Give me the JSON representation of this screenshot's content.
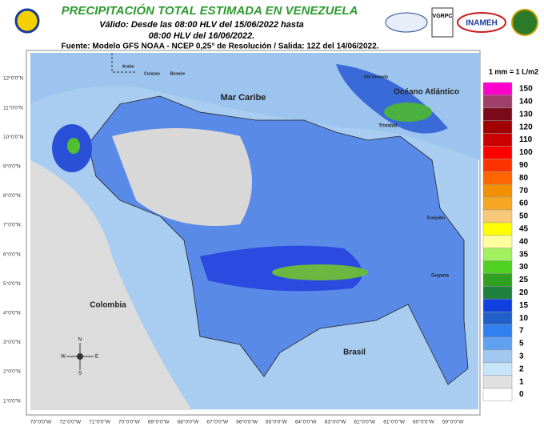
{
  "header": {
    "title": "PRECIPITACIÓN TOTAL ESTIMADA EN VENEZUELA",
    "subtitle_1": "Válido: Desde las 08:00 HLV del 15/06/2022 hasta",
    "subtitle_2": "08:00 HLV del 16/06/2022.",
    "source": "Fuente: Modelo GFS NOAA - NCEP 0,25° de Resolución / Salida: 12Z del 14/06/2022.",
    "logos": [
      "VGRPC",
      "INAMEH"
    ]
  },
  "map": {
    "labels": [
      "Mar Caribe",
      "Océano Atlántico",
      "Colombia",
      "Brasil",
      "Guyana",
      "Trinidad",
      "Aruba",
      "Curazao",
      "Bonaire",
      "Isla Granada",
      "Esequibo"
    ],
    "lat_labels": [
      "12°0'0\"N",
      "11°0'0\"N",
      "10°0'0\"N",
      "9°0'0\"N",
      "8°0'0\"N",
      "7°0'0\"N",
      "6°0'0\"N",
      "5°0'0\"N",
      "4°0'0\"N",
      "3°0'0\"N",
      "2°0'0\"N",
      "1°0'0\"N"
    ],
    "lon_labels": [
      "73°0'0\"W",
      "72°0'0\"W",
      "71°0'0\"W",
      "70°0'0\"W",
      "69°0'0\"W",
      "68°0'0\"W",
      "67°0'0\"W",
      "66°0'0\"W",
      "65°0'0\"W",
      "64°0'0\"W",
      "63°0'0\"W",
      "62°0'0\"W",
      "61°0'0\"W",
      "60°0'0\"W",
      "59°0'0\"W"
    ],
    "compass": [
      "N",
      "E",
      "S",
      "W"
    ]
  },
  "legend": {
    "title": "1 mm = 1 L/m2",
    "items": [
      {
        "value": 150,
        "color": "#ff00cc"
      },
      {
        "value": 140,
        "color": "#a0406a"
      },
      {
        "value": 130,
        "color": "#7a0a1a"
      },
      {
        "value": 120,
        "color": "#a00000"
      },
      {
        "value": 110,
        "color": "#cc0000"
      },
      {
        "value": 100,
        "color": "#ff0000"
      },
      {
        "value": 90,
        "color": "#ff3300"
      },
      {
        "value": 80,
        "color": "#ff6600"
      },
      {
        "value": 70,
        "color": "#f09000"
      },
      {
        "value": 60,
        "color": "#f5a623"
      },
      {
        "value": 50,
        "color": "#f8c878"
      },
      {
        "value": 45,
        "color": "#ffff00"
      },
      {
        "value": 40,
        "color": "#ffffa0"
      },
      {
        "value": 35,
        "color": "#a0f060"
      },
      {
        "value": 30,
        "color": "#50d020"
      },
      {
        "value": 25,
        "color": "#30a020"
      },
      {
        "value": 20,
        "color": "#208040"
      },
      {
        "value": 15,
        "color": "#1040e0"
      },
      {
        "value": 10,
        "color": "#2060c8"
      },
      {
        "value": 7,
        "color": "#3080f0"
      },
      {
        "value": 5,
        "color": "#60a0f0"
      },
      {
        "value": 3,
        "color": "#a0c8f0"
      },
      {
        "value": 2,
        "color": "#c8e4f8"
      },
      {
        "value": 1,
        "color": "#e0e0e0"
      },
      {
        "value": 0,
        "color": "#ffffff"
      }
    ]
  }
}
